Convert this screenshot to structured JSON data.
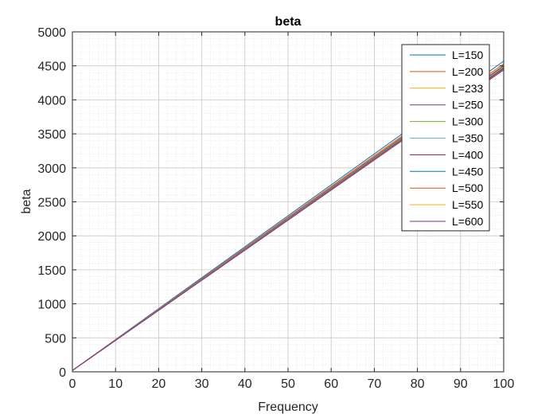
{
  "chart_data": {
    "type": "line",
    "title": "beta",
    "xlabel": "Frequency",
    "ylabel": "beta",
    "xlim": [
      0,
      100
    ],
    "ylim": [
      0,
      5000
    ],
    "xticks": [
      "0",
      "10",
      "20",
      "30",
      "40",
      "50",
      "60",
      "70",
      "80",
      "90",
      "100"
    ],
    "yticks": [
      "0",
      "500",
      "1000",
      "1500",
      "2000",
      "2500",
      "3000",
      "3500",
      "4000",
      "4500",
      "5000"
    ],
    "grid": true,
    "minor_grid": true,
    "legend_position": "top-right",
    "x": [
      0,
      100
    ],
    "series": [
      {
        "name": "L=150",
        "color": "#0072BD",
        "values": [
          20,
          4570
        ]
      },
      {
        "name": "L=200",
        "color": "#D95319",
        "values": [
          20,
          4530
        ]
      },
      {
        "name": "L=233",
        "color": "#EDB120",
        "values": [
          20,
          4510
        ]
      },
      {
        "name": "L=250",
        "color": "#7E2F8E",
        "values": [
          20,
          4500
        ]
      },
      {
        "name": "L=300",
        "color": "#77AC30",
        "values": [
          20,
          4485
        ]
      },
      {
        "name": "L=350",
        "color": "#4DBEEE",
        "values": [
          20,
          4475
        ]
      },
      {
        "name": "L=400",
        "color": "#A2142F",
        "values": [
          20,
          4465
        ]
      },
      {
        "name": "L=450",
        "color": "#0072BD",
        "values": [
          20,
          4455
        ]
      },
      {
        "name": "L=500",
        "color": "#D95319",
        "values": [
          20,
          4450
        ]
      },
      {
        "name": "L=550",
        "color": "#EDB120",
        "values": [
          20,
          4445
        ]
      },
      {
        "name": "L=600",
        "color": "#7E2F8E",
        "values": [
          20,
          4440
        ]
      }
    ]
  }
}
